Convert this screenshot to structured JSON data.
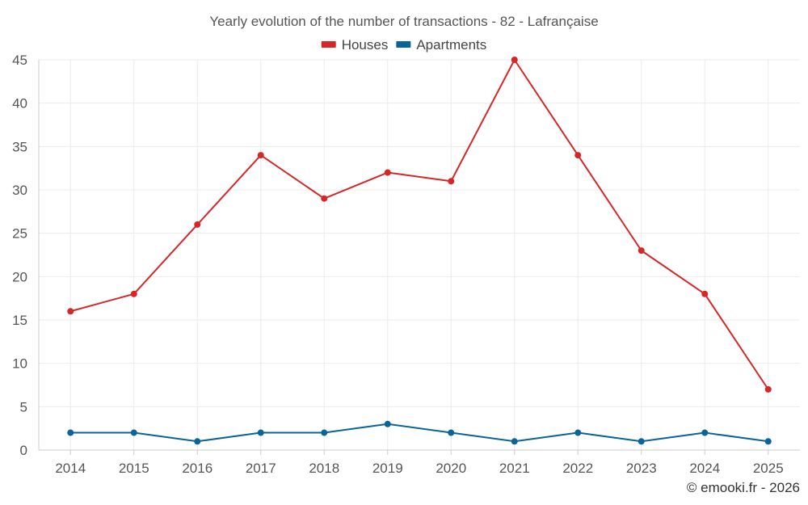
{
  "chart_data": {
    "type": "line",
    "title": "Yearly evolution of the number of transactions - 82 - Lafrançaise",
    "categories": [
      "2014",
      "2015",
      "2016",
      "2017",
      "2018",
      "2019",
      "2020",
      "2021",
      "2022",
      "2023",
      "2024",
      "2025"
    ],
    "series": [
      {
        "name": "Houses",
        "color": "#d62728",
        "values": [
          16,
          18,
          26,
          34,
          29,
          32,
          31,
          45,
          34,
          23,
          18,
          7
        ]
      },
      {
        "name": "Apartments",
        "color": "#0b6496",
        "values": [
          2,
          2,
          1,
          2,
          2,
          3,
          2,
          1,
          2,
          1,
          2,
          1
        ]
      }
    ],
    "ylim": [
      0,
      45
    ],
    "yticks": [
      0,
      5,
      10,
      15,
      20,
      25,
      30,
      35,
      40,
      45
    ],
    "xlabel": "",
    "ylabel": "",
    "grid": true,
    "legend": "top-center"
  },
  "footer": {
    "credit": "© emooki.fr - 2026"
  }
}
